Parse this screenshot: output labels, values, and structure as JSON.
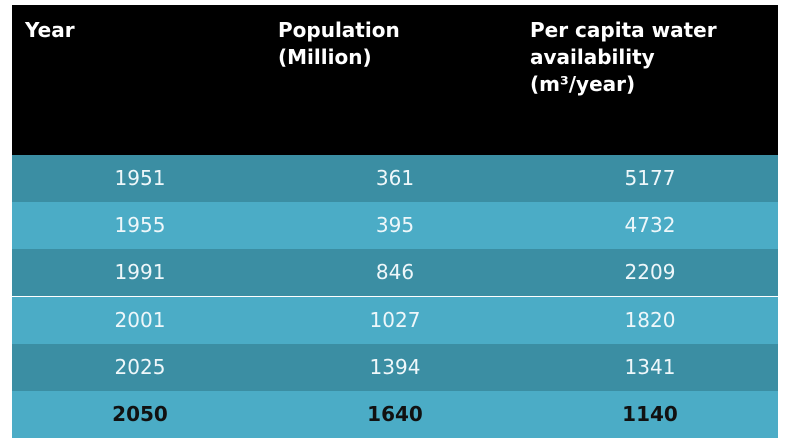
{
  "table": {
    "header": [
      [
        "Year"
      ],
      [
        "Population",
        "(Million)"
      ],
      [
        "Per capita water",
        "availability",
        "(m³/year)"
      ]
    ],
    "rows": [
      [
        1951,
        361,
        5177
      ],
      [
        1955,
        395,
        4732
      ],
      [
        1991,
        846,
        2209
      ],
      [
        2001,
        1027,
        1820
      ],
      [
        2025,
        1394,
        1341
      ],
      [
        2050,
        1640,
        1140
      ]
    ]
  }
}
